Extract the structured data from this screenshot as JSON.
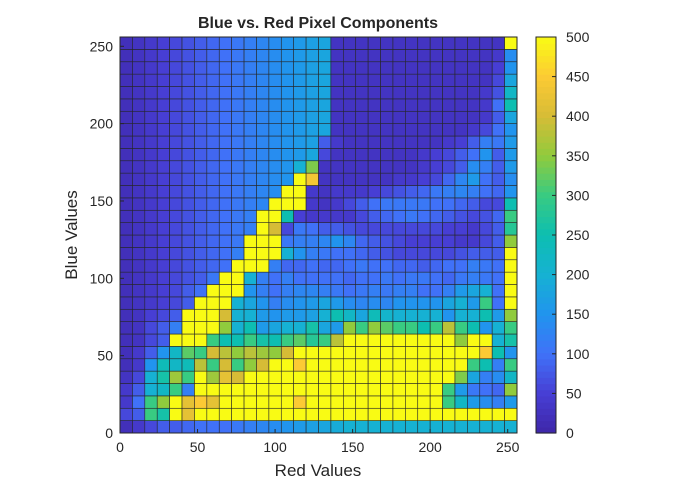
{
  "chart_data": {
    "type": "heatmap",
    "title": "Blue vs. Red Pixel Components",
    "xlabel": "Red Values",
    "ylabel": "Blue Values",
    "xlim": [
      0,
      256
    ],
    "ylim": [
      0,
      256
    ],
    "bin_width": 8,
    "x_ticks": [
      0,
      50,
      100,
      150,
      200,
      250
    ],
    "y_ticks": [
      0,
      50,
      100,
      150,
      200,
      250
    ],
    "colorbar": {
      "limits": [
        0,
        500
      ],
      "ticks": [
        0,
        50,
        100,
        150,
        200,
        250,
        300,
        350,
        400,
        450,
        500
      ],
      "colormap": "parula"
    },
    "note_values": "counts[r][c]: r = blue bin (0 = bottom, bin width 8), c = red bin (0 = left); value = pixel count, colour-clipped at 500",
    "counts": [
      [
        20,
        40,
        60,
        80,
        80,
        90,
        100,
        100,
        100,
        110,
        120,
        130,
        140,
        150,
        160,
        170,
        180,
        190,
        200,
        200,
        200,
        200,
        200,
        200,
        200,
        200,
        200,
        200,
        200,
        200,
        200,
        200
      ],
      [
        60,
        80,
        300,
        260,
        500,
        420,
        500,
        500,
        520,
        520,
        500,
        500,
        500,
        500,
        500,
        500,
        500,
        500,
        500,
        500,
        500,
        500,
        500,
        500,
        500,
        500,
        500,
        500,
        500,
        500,
        500,
        500
      ],
      [
        40,
        100,
        300,
        350,
        500,
        420,
        450,
        420,
        500,
        500,
        500,
        500,
        500,
        500,
        450,
        500,
        500,
        500,
        500,
        500,
        500,
        500,
        500,
        500,
        500,
        500,
        300,
        220,
        160,
        140,
        120,
        160
      ],
      [
        40,
        80,
        200,
        220,
        300,
        120,
        500,
        500,
        500,
        500,
        500,
        500,
        500,
        500,
        500,
        500,
        500,
        500,
        500,
        500,
        500,
        500,
        500,
        500,
        500,
        500,
        300,
        160,
        110,
        100,
        90,
        350
      ],
      [
        30,
        60,
        200,
        260,
        360,
        300,
        500,
        360,
        420,
        400,
        500,
        500,
        500,
        500,
        500,
        500,
        500,
        500,
        500,
        500,
        500,
        500,
        500,
        500,
        500,
        500,
        500,
        340,
        180,
        120,
        140,
        220
      ],
      [
        20,
        40,
        150,
        240,
        220,
        240,
        380,
        300,
        400,
        300,
        350,
        400,
        500,
        500,
        450,
        500,
        500,
        500,
        500,
        500,
        500,
        500,
        500,
        500,
        500,
        500,
        500,
        500,
        300,
        250,
        120,
        300
      ],
      [
        20,
        40,
        80,
        150,
        220,
        320,
        300,
        400,
        380,
        350,
        380,
        360,
        350,
        400,
        500,
        500,
        500,
        500,
        500,
        500,
        500,
        500,
        500,
        500,
        500,
        500,
        500,
        500,
        500,
        450,
        250,
        150
      ],
      [
        20,
        30,
        60,
        80,
        500,
        500,
        500,
        300,
        250,
        250,
        300,
        260,
        250,
        300,
        320,
        280,
        300,
        380,
        500,
        500,
        500,
        500,
        500,
        500,
        500,
        500,
        500,
        350,
        500,
        500,
        200,
        260
      ],
      [
        20,
        30,
        60,
        80,
        120,
        500,
        500,
        500,
        350,
        200,
        250,
        160,
        180,
        200,
        200,
        260,
        180,
        160,
        350,
        300,
        350,
        320,
        300,
        300,
        250,
        300,
        380,
        300,
        250,
        150,
        200,
        300
      ],
      [
        20,
        30,
        50,
        60,
        80,
        500,
        500,
        500,
        400,
        200,
        200,
        160,
        150,
        160,
        160,
        170,
        200,
        250,
        220,
        180,
        240,
        210,
        200,
        200,
        200,
        200,
        150,
        200,
        200,
        250,
        160,
        350
      ],
      [
        20,
        30,
        40,
        50,
        60,
        80,
        500,
        500,
        500,
        200,
        180,
        150,
        120,
        140,
        150,
        160,
        180,
        160,
        140,
        130,
        140,
        130,
        150,
        150,
        150,
        150,
        180,
        200,
        160,
        300,
        100,
        500
      ],
      [
        20,
        30,
        40,
        50,
        60,
        80,
        100,
        500,
        500,
        500,
        150,
        120,
        100,
        120,
        130,
        130,
        120,
        110,
        100,
        110,
        120,
        110,
        120,
        120,
        100,
        100,
        120,
        160,
        180,
        200,
        100,
        500
      ],
      [
        20,
        30,
        40,
        50,
        60,
        70,
        80,
        110,
        500,
        500,
        200,
        120,
        100,
        120,
        100,
        100,
        100,
        100,
        90,
        100,
        100,
        110,
        100,
        110,
        110,
        100,
        90,
        110,
        120,
        110,
        100,
        500
      ],
      [
        20,
        30,
        40,
        50,
        60,
        70,
        80,
        90,
        100,
        500,
        500,
        500,
        120,
        90,
        90,
        100,
        90,
        90,
        100,
        110,
        100,
        100,
        90,
        90,
        80,
        90,
        100,
        100,
        120,
        110,
        100,
        500
      ],
      [
        20,
        30,
        40,
        50,
        60,
        70,
        80,
        90,
        100,
        120,
        500,
        500,
        500,
        200,
        150,
        120,
        110,
        100,
        100,
        90,
        80,
        70,
        60,
        60,
        60,
        60,
        60,
        70,
        80,
        80,
        80,
        500
      ],
      [
        20,
        30,
        40,
        50,
        60,
        70,
        80,
        90,
        100,
        110,
        500,
        500,
        500,
        110,
        120,
        120,
        130,
        150,
        130,
        90,
        80,
        70,
        60,
        50,
        50,
        50,
        50,
        40,
        40,
        60,
        80,
        350
      ],
      [
        20,
        30,
        40,
        50,
        60,
        70,
        80,
        90,
        100,
        110,
        120,
        500,
        400,
        60,
        110,
        100,
        80,
        80,
        70,
        60,
        60,
        60,
        60,
        60,
        60,
        60,
        50,
        50,
        40,
        60,
        80,
        280
      ],
      [
        20,
        30,
        40,
        50,
        60,
        70,
        80,
        90,
        100,
        110,
        120,
        500,
        500,
        250,
        50,
        40,
        40,
        40,
        40,
        60,
        80,
        90,
        100,
        110,
        100,
        90,
        80,
        70,
        60,
        70,
        90,
        300
      ],
      [
        20,
        30,
        40,
        50,
        60,
        70,
        80,
        90,
        100,
        110,
        120,
        130,
        500,
        500,
        500,
        40,
        30,
        40,
        60,
        80,
        100,
        110,
        110,
        110,
        110,
        100,
        100,
        90,
        80,
        60,
        60,
        250
      ],
      [
        20,
        30,
        40,
        50,
        60,
        70,
        80,
        90,
        100,
        110,
        120,
        130,
        140,
        500,
        500,
        40,
        30,
        40,
        40,
        40,
        50,
        60,
        70,
        80,
        90,
        110,
        120,
        130,
        120,
        100,
        90,
        150
      ],
      [
        20,
        30,
        40,
        50,
        60,
        70,
        80,
        90,
        100,
        110,
        120,
        130,
        140,
        150,
        500,
        440,
        30,
        30,
        30,
        30,
        30,
        30,
        40,
        40,
        50,
        60,
        90,
        130,
        160,
        100,
        80,
        140
      ],
      [
        20,
        30,
        40,
        50,
        60,
        70,
        80,
        90,
        100,
        110,
        120,
        130,
        140,
        150,
        200,
        340,
        30,
        30,
        30,
        30,
        30,
        30,
        30,
        30,
        40,
        50,
        60,
        80,
        140,
        120,
        80,
        160
      ],
      [
        20,
        30,
        40,
        50,
        60,
        70,
        80,
        90,
        100,
        110,
        120,
        130,
        140,
        150,
        160,
        180,
        60,
        30,
        30,
        30,
        30,
        30,
        30,
        30,
        40,
        50,
        60,
        80,
        100,
        150,
        80,
        160
      ],
      [
        20,
        30,
        40,
        50,
        60,
        70,
        80,
        90,
        100,
        110,
        120,
        130,
        140,
        150,
        160,
        170,
        80,
        40,
        30,
        30,
        30,
        30,
        30,
        30,
        30,
        30,
        40,
        50,
        80,
        120,
        110,
        160
      ],
      [
        20,
        30,
        40,
        50,
        60,
        70,
        80,
        90,
        100,
        110,
        120,
        130,
        140,
        150,
        160,
        170,
        180,
        30,
        30,
        30,
        30,
        30,
        30,
        30,
        30,
        30,
        30,
        30,
        40,
        60,
        100,
        150
      ],
      [
        20,
        30,
        40,
        50,
        60,
        70,
        80,
        90,
        100,
        110,
        120,
        130,
        140,
        150,
        160,
        170,
        180,
        30,
        30,
        30,
        30,
        30,
        30,
        30,
        30,
        30,
        30,
        30,
        30,
        40,
        80,
        180
      ],
      [
        20,
        30,
        40,
        50,
        60,
        70,
        80,
        90,
        100,
        110,
        120,
        130,
        140,
        150,
        160,
        170,
        180,
        30,
        30,
        30,
        30,
        30,
        30,
        30,
        30,
        30,
        30,
        30,
        30,
        40,
        100,
        250
      ],
      [
        20,
        30,
        40,
        50,
        60,
        70,
        80,
        90,
        100,
        110,
        120,
        130,
        140,
        150,
        160,
        170,
        180,
        30,
        30,
        30,
        30,
        30,
        30,
        30,
        30,
        30,
        30,
        30,
        30,
        40,
        70,
        220
      ],
      [
        20,
        30,
        40,
        50,
        60,
        70,
        80,
        90,
        100,
        110,
        120,
        130,
        140,
        150,
        160,
        170,
        180,
        30,
        30,
        30,
        30,
        30,
        30,
        30,
        30,
        30,
        30,
        30,
        30,
        30,
        60,
        180
      ],
      [
        20,
        30,
        40,
        50,
        60,
        70,
        80,
        90,
        100,
        110,
        120,
        130,
        140,
        150,
        160,
        170,
        180,
        30,
        30,
        30,
        30,
        30,
        30,
        30,
        30,
        30,
        30,
        30,
        30,
        30,
        50,
        150
      ],
      [
        20,
        30,
        40,
        50,
        60,
        70,
        80,
        90,
        100,
        110,
        120,
        130,
        140,
        150,
        160,
        170,
        180,
        30,
        30,
        30,
        30,
        30,
        30,
        30,
        30,
        30,
        30,
        30,
        30,
        30,
        40,
        140
      ],
      [
        20,
        30,
        40,
        50,
        60,
        70,
        80,
        90,
        100,
        110,
        120,
        130,
        140,
        150,
        160,
        170,
        180,
        30,
        30,
        30,
        30,
        30,
        30,
        30,
        30,
        30,
        30,
        30,
        30,
        30,
        30,
        500
      ]
    ]
  }
}
